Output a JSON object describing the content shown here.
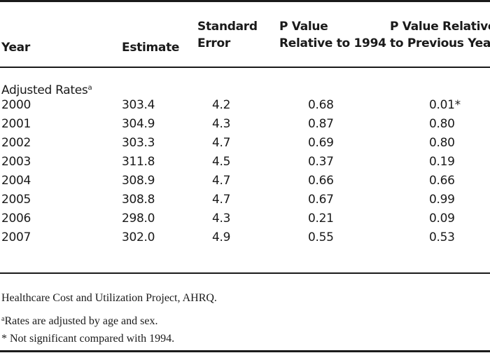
{
  "headers": {
    "year": [
      "Year"
    ],
    "estimate": [
      "Estimate"
    ],
    "std_error": [
      "Standard",
      "Error"
    ],
    "p_1994": [
      "P Value",
      "Relative to 1994"
    ],
    "p_prev": [
      "P Value Relative",
      "to Previous Year"
    ]
  },
  "section_label": "Adjusted Rates",
  "section_sup": "a",
  "rows": [
    {
      "year": "2000",
      "estimate": "303.4",
      "se": "4.2",
      "p1994": "0.68",
      "pprev": "0.01*"
    },
    {
      "year": "2001",
      "estimate": "304.9",
      "se": "4.3",
      "p1994": "0.87",
      "pprev": "0.80"
    },
    {
      "year": "2002",
      "estimate": "303.3",
      "se": "4.7",
      "p1994": "0.69",
      "pprev": "0.80"
    },
    {
      "year": "2003",
      "estimate": "311.8",
      "se": "4.5",
      "p1994": "0.37",
      "pprev": "0.19"
    },
    {
      "year": "2004",
      "estimate": "308.9",
      "se": "4.7",
      "p1994": "0.66",
      "pprev": "0.66"
    },
    {
      "year": "2005",
      "estimate": "308.8",
      "se": "4.7",
      "p1994": "0.67",
      "pprev": "0.99"
    },
    {
      "year": "2006",
      "estimate": "298.0",
      "se": "4.3",
      "p1994": "0.21",
      "pprev": "0.09"
    },
    {
      "year": "2007",
      "estimate": "302.0",
      "se": "4.9",
      "p1994": "0.55",
      "pprev": "0.53"
    }
  ],
  "notes": {
    "source": "Healthcare Cost and Utilization Project, AHRQ.",
    "a_marker": "a",
    "a_text": "Rates are adjusted by age and sex.",
    "star_text": "* Not significant compared with 1994."
  }
}
